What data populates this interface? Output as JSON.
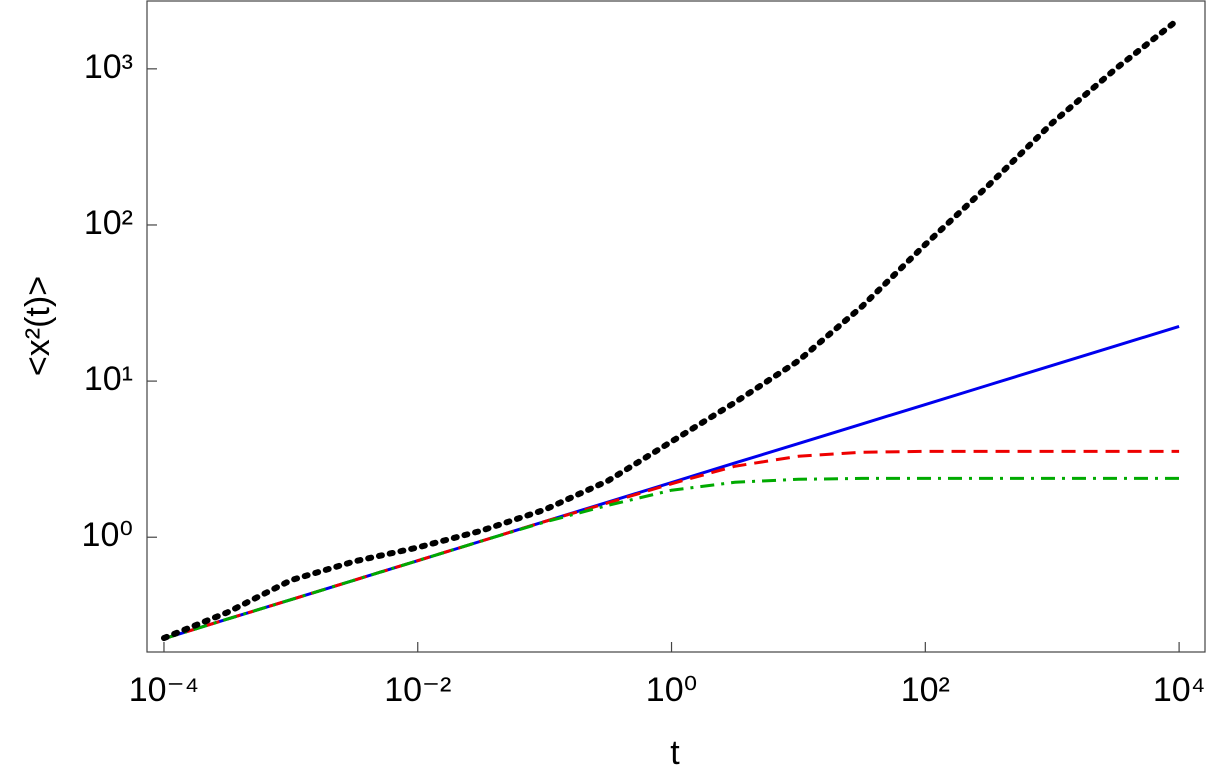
{
  "chart_data": {
    "type": "line",
    "xlabel": "t",
    "ylabel": "<x²(t)>",
    "xscale": "log",
    "yscale": "log",
    "xlim": [
      7.35e-05,
      16000
    ],
    "ylim": [
      0.184,
      2720
    ],
    "xticks": [
      {
        "value": 0.0001,
        "label": "10⁻⁴"
      },
      {
        "value": 0.01,
        "label": "10⁻²"
      },
      {
        "value": 1,
        "label": "10⁰"
      },
      {
        "value": 100,
        "label": "10²"
      },
      {
        "value": 10000,
        "label": "10⁴"
      }
    ],
    "yticks": [
      {
        "value": 1,
        "label": "10⁰"
      },
      {
        "value": 10,
        "label": "10¹"
      },
      {
        "value": 100,
        "label": "10²"
      },
      {
        "value": 1000,
        "label": "10³"
      }
    ],
    "x": [
      0.0001,
      0.000316,
      0.001,
      0.00316,
      0.01,
      0.0316,
      0.1,
      0.316,
      1,
      3.16,
      10,
      31.6,
      100,
      316,
      1000,
      3162,
      10000
    ],
    "series": [
      {
        "color": "#0000ee",
        "linestyle": "solid",
        "values": [
          0.224,
          0.299,
          0.398,
          0.531,
          0.708,
          0.944,
          1.26,
          1.68,
          2.24,
          2.99,
          3.98,
          5.31,
          7.08,
          9.44,
          12.6,
          16.8,
          22.4
        ]
      },
      {
        "color": "#ee0000",
        "linestyle": "dashed",
        "values": [
          0.224,
          0.299,
          0.398,
          0.531,
          0.708,
          0.944,
          1.26,
          1.66,
          2.2,
          2.85,
          3.3,
          3.5,
          3.55,
          3.55,
          3.55,
          3.55,
          3.55
        ]
      },
      {
        "color": "#00aa00",
        "linestyle": "dashdot",
        "values": [
          0.224,
          0.299,
          0.398,
          0.531,
          0.708,
          0.944,
          1.25,
          1.6,
          2.0,
          2.25,
          2.35,
          2.38,
          2.38,
          2.38,
          2.38,
          2.38,
          2.38
        ]
      },
      {
        "color": "#000000",
        "linestyle": "dotted",
        "values": [
          0.226,
          0.33,
          0.53,
          0.7,
          0.86,
          1.1,
          1.5,
          2.3,
          4.1,
          7.3,
          13.5,
          30,
          75,
          180,
          450,
          1000,
          2090
        ]
      }
    ]
  }
}
